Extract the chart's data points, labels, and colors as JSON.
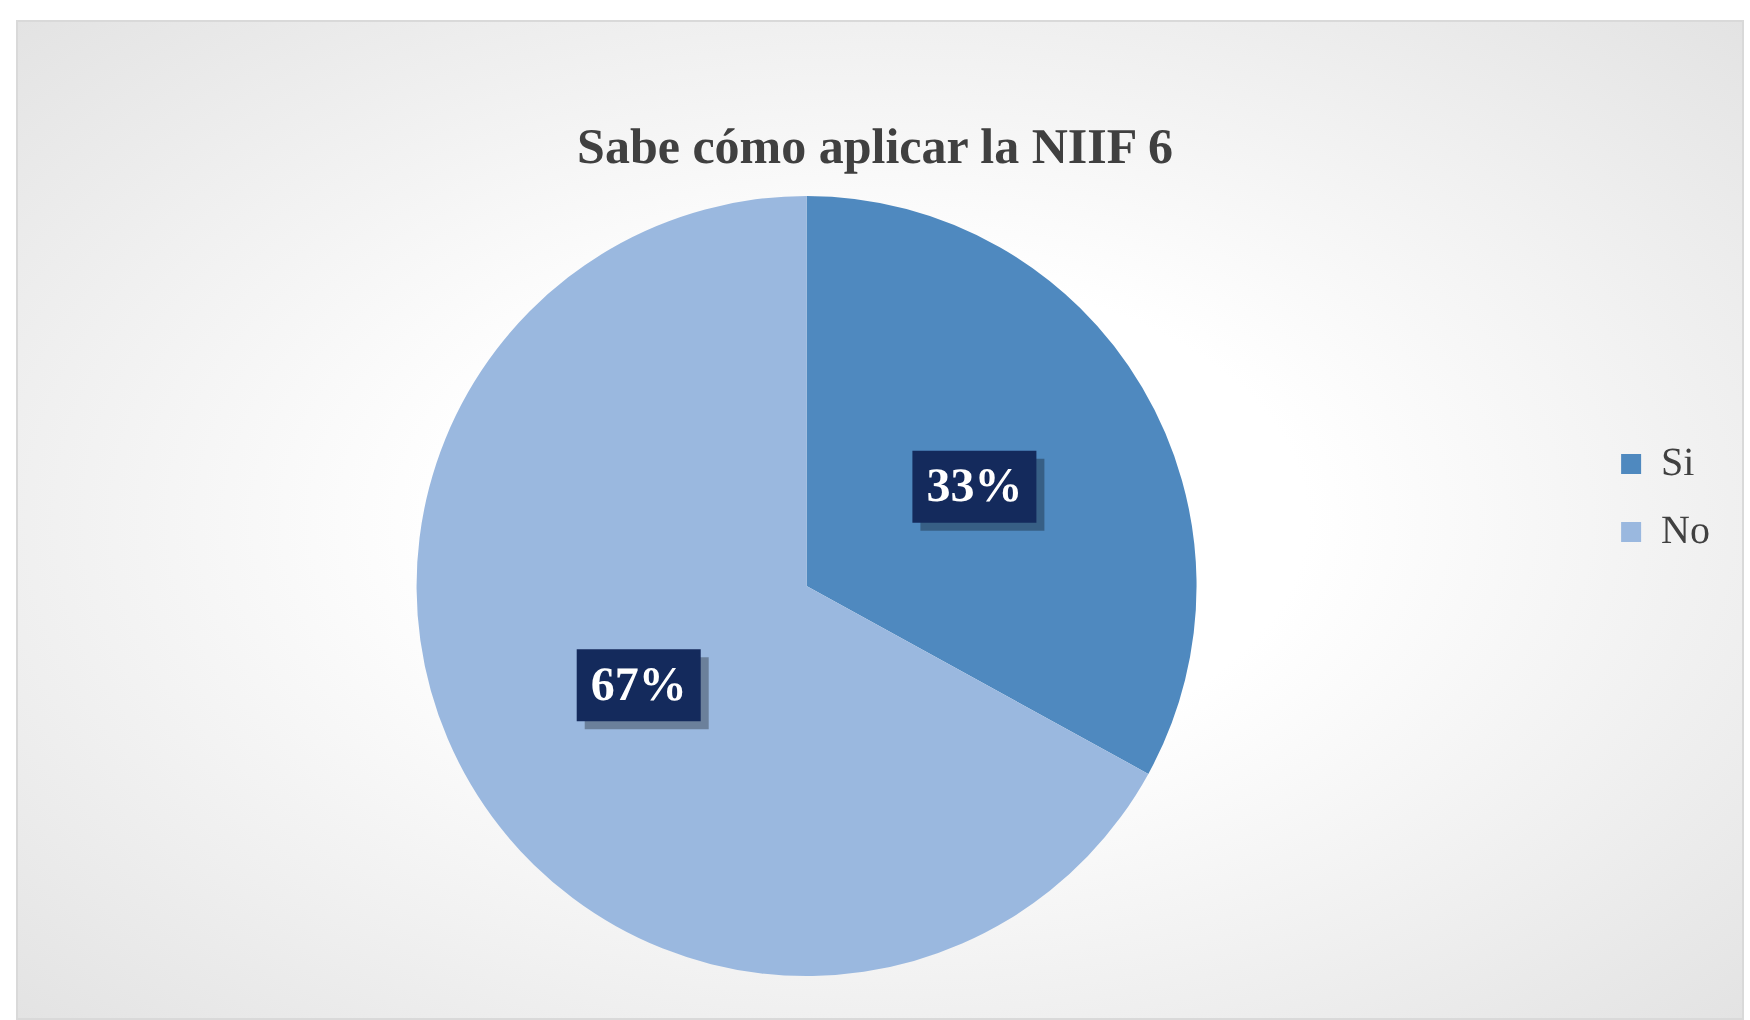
{
  "chart_data": {
    "type": "pie",
    "title": "Sabe cómo aplicar la NIIF 6",
    "categories": [
      "Si",
      "No"
    ],
    "values": [
      33,
      67
    ],
    "colors": [
      "#4f89bf",
      "#9ab8df"
    ],
    "value_labels": [
      "33%",
      "67%"
    ],
    "legend": "right"
  }
}
